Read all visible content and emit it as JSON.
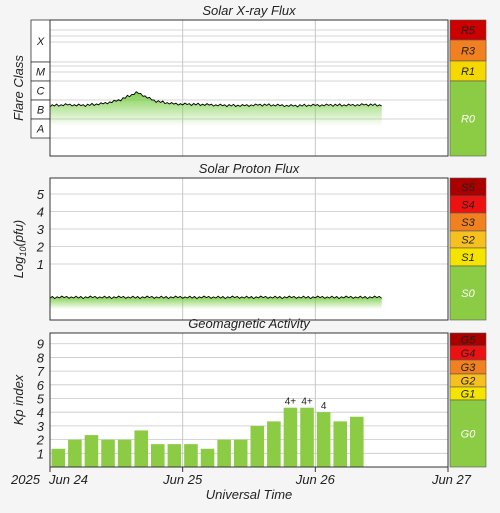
{
  "chart_data": [
    {
      "type": "area",
      "title": "Solar X-ray Flux",
      "ylabel": "Flare Class",
      "y_scale": "log",
      "class_labels": [
        "X",
        "M",
        "C",
        "B",
        "A"
      ],
      "x_ticks": [
        "Jun 24",
        "Jun 25",
        "Jun 26",
        "Jun 27"
      ],
      "series": [
        {
          "data_start": "2025-06-24 00:00",
          "data_end": "2025-06-26 12:00",
          "approx_class_level": [
            1.7,
            1.75,
            1.72,
            1.8,
            2.0,
            2.4,
            1.95,
            1.8,
            1.78,
            1.75,
            1.72,
            1.7,
            1.75,
            1.72,
            1.7,
            1.72,
            1.74,
            1.72,
            1.76,
            1.72
          ]
        }
      ],
      "scale_labels": [
        "R5",
        "R3",
        "R1",
        "R0"
      ],
      "scale_colors": [
        "#cc0000",
        "#f08020",
        "#f5d800",
        "#8ccc44"
      ],
      "grid": true
    },
    {
      "type": "area",
      "title": "Solar Proton Flux",
      "ylabel": "Log10(pfu)",
      "yticks": [
        "5",
        "4",
        "3",
        "2",
        "1"
      ],
      "x_ticks": [
        "Jun 24",
        "Jun 25",
        "Jun 26",
        "Jun 27"
      ],
      "series": [
        {
          "data_start": "2025-06-24 00:00",
          "data_end": "2025-06-26 12:00",
          "approx_log_pfu": -0.9
        }
      ],
      "scale_labels": [
        "S5",
        "S4",
        "S3",
        "S2",
        "S1",
        "S0"
      ],
      "scale_colors": [
        "#aa0000",
        "#ee1111",
        "#f08020",
        "#f5c020",
        "#f5e400",
        "#8ccc44"
      ],
      "grid": true
    },
    {
      "type": "bar",
      "title": "Geomagnetic Activity",
      "ylabel": "Kp index",
      "ylim": [
        0,
        9
      ],
      "yticks": [
        "9",
        "8",
        "7",
        "6",
        "5",
        "4",
        "3",
        "2",
        "1"
      ],
      "bar_interval": "3 hours",
      "x_ticks": [
        "Jun 24",
        "Jun 25",
        "Jun 26",
        "Jun 27"
      ],
      "values": [
        1.33,
        2.0,
        2.33,
        2.0,
        2.0,
        2.67,
        1.67,
        1.67,
        1.67,
        1.33,
        2.0,
        2.0,
        3.0,
        3.33,
        4.33,
        4.33,
        4.0,
        3.33,
        3.67
      ],
      "bar_labels": [
        "",
        "",
        "",
        "",
        "",
        "",
        "",
        "",
        "",
        "",
        "",
        "",
        "",
        "",
        "4+",
        "4+",
        "4",
        "",
        ""
      ],
      "scale_labels": [
        "G5",
        "G4",
        "G3",
        "G2",
        "G1",
        "G0"
      ],
      "scale_colors": [
        "#aa0000",
        "#ee1111",
        "#f08020",
        "#f5c020",
        "#f5e400",
        "#8ccc44"
      ],
      "grid": true
    }
  ],
  "xaxis": {
    "year": "2025",
    "first_tick": "Jun 24",
    "label": "Universal Time"
  },
  "colors": {
    "bar": "#8ccc44",
    "flux_fill": "#7ccf4a",
    "flux_line": "#000000",
    "grid": "#c8c8c8",
    "panel_bg": "#ffffff"
  }
}
